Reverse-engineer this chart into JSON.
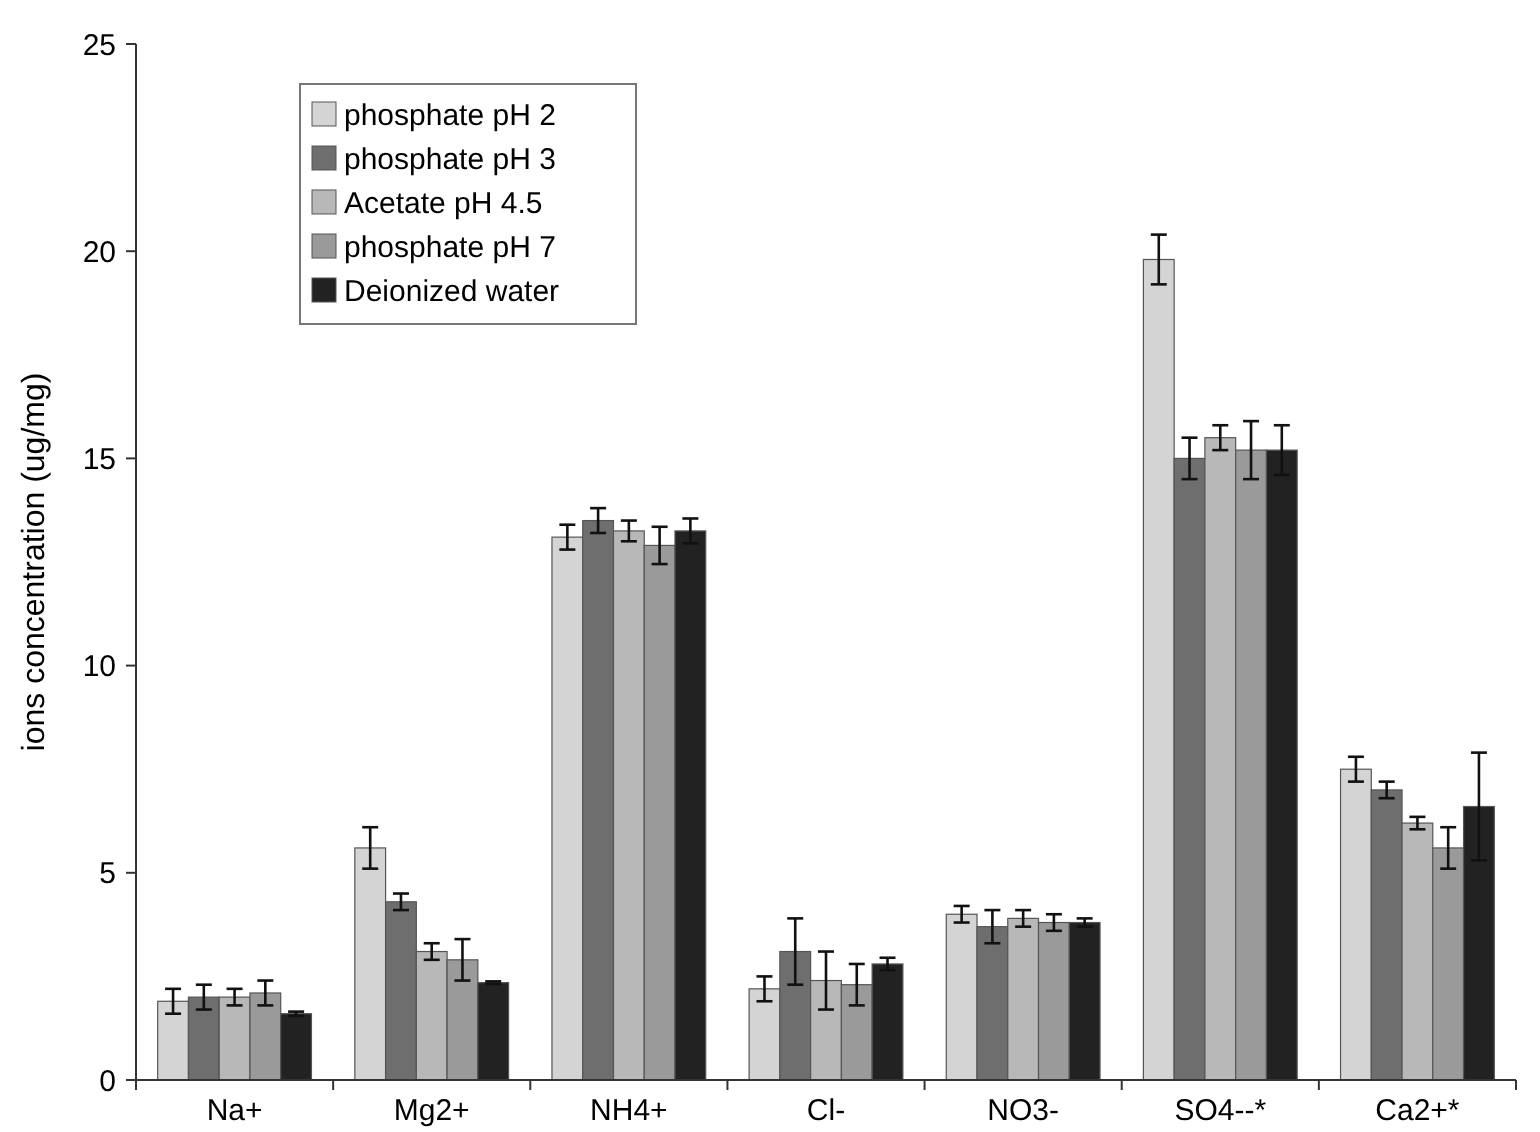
{
  "chart_data": {
    "type": "bar",
    "ylabel": "ions concentration (ug/mg)",
    "categories": [
      "Na+",
      "Mg2+",
      "NH4+",
      "Cl-",
      "NO3-",
      "SO4--*",
      "Ca2+*"
    ],
    "series": [
      {
        "name": "phosphate pH 2",
        "color": "#d4d4d4",
        "values": [
          1.9,
          5.6,
          13.1,
          2.2,
          4.0,
          19.8,
          7.5
        ],
        "errors": [
          0.3,
          0.5,
          0.3,
          0.3,
          0.2,
          0.6,
          0.3
        ]
      },
      {
        "name": "phosphate pH 3",
        "color": "#6e6e6e",
        "values": [
          2.0,
          4.3,
          13.5,
          3.1,
          3.7,
          15.0,
          7.0
        ],
        "errors": [
          0.3,
          0.2,
          0.3,
          0.8,
          0.4,
          0.5,
          0.2
        ]
      },
      {
        "name": "Acetate pH 4.5",
        "color": "#b8b8b8",
        "values": [
          2.0,
          3.1,
          13.25,
          2.4,
          3.9,
          15.5,
          6.2
        ],
        "errors": [
          0.2,
          0.2,
          0.25,
          0.7,
          0.2,
          0.3,
          0.15
        ]
      },
      {
        "name": "phosphate pH 7",
        "color": "#9a9a9a",
        "values": [
          2.1,
          2.9,
          12.9,
          2.3,
          3.8,
          15.2,
          5.6
        ],
        "errors": [
          0.3,
          0.5,
          0.45,
          0.5,
          0.2,
          0.7,
          0.5
        ]
      },
      {
        "name": "Deionized water",
        "color": "#222222",
        "values": [
          1.6,
          2.35,
          13.25,
          2.8,
          3.8,
          15.2,
          6.6
        ],
        "errors": [
          0.05,
          0.03,
          0.3,
          0.15,
          0.1,
          0.6,
          1.3
        ]
      }
    ],
    "ylim": [
      0,
      25
    ],
    "yticks": [
      0,
      5,
      10,
      15,
      20,
      25
    ],
    "grid": false,
    "legend": "top left"
  }
}
